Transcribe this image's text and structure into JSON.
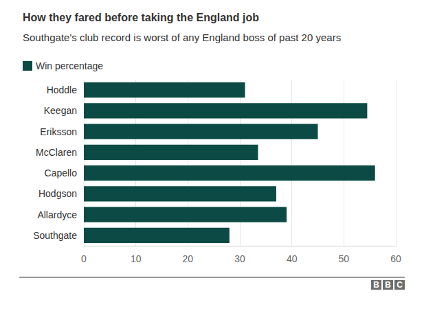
{
  "chart_data": {
    "type": "bar",
    "title": "How they fared before taking the England job",
    "subtitle": "Southgate's club record is worst of any England boss of past 20 years",
    "orientation": "horizontal",
    "categories": [
      "Hoddle",
      "Keegan",
      "Eriksson",
      "McClaren",
      "Capello",
      "Hodgson",
      "Allardyce",
      "Southgate"
    ],
    "series": [
      {
        "name": "Win percentage",
        "color": "#0b4a45",
        "values": [
          31,
          54.5,
          45,
          33.5,
          56,
          37,
          39,
          28
        ]
      }
    ],
    "xlim": [
      0,
      60
    ],
    "xticks": [
      0,
      10,
      20,
      30,
      40,
      50,
      60
    ],
    "grid": true,
    "legend": "top-left",
    "footer": "BBC"
  }
}
